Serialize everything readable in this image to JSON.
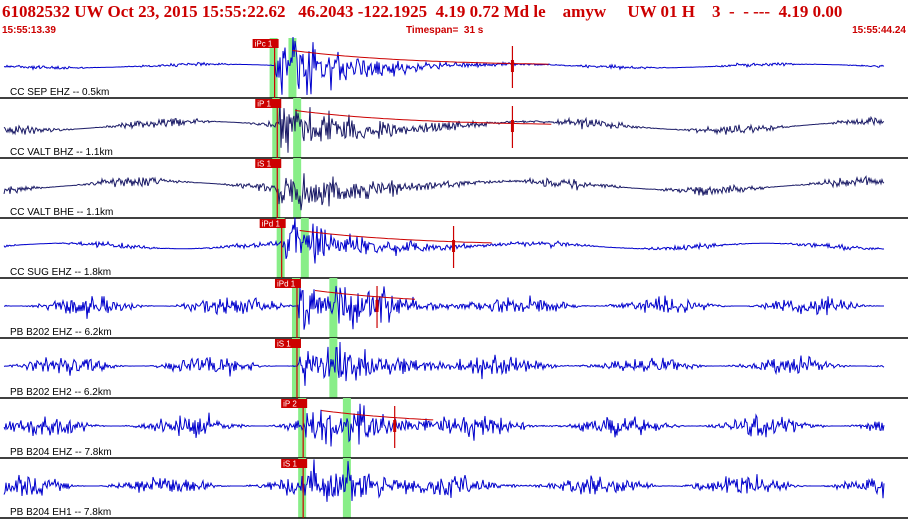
{
  "header": {
    "title": "61082532 UW Oct 23, 2015 15:55:22.62   46.2043 -122.1925  4.19 0.72 Md le    amyw     UW 01 H    3  -  - ---  4.19 0.00",
    "start_time": "15:55:13.39",
    "timespan": "Timespan=  31 s",
    "end_time": "15:55:44.24"
  },
  "colors": {
    "header_text": "#cc0000",
    "trace_short": "#1a1a66",
    "trace_long": "#0000cc",
    "pick": "#cc0000",
    "pick_window": "#88ee88"
  },
  "chart_data": {
    "type": "line",
    "xlim": [
      13.39,
      44.24
    ],
    "origin_time": 22.62,
    "traces": [
      {
        "label": "CC SEP EHZ -- 0.5km",
        "pick_labels": [
          "iPc 1"
        ],
        "p_time": 22.72,
        "s_time": 23.36,
        "amp_marker_time": 30.8,
        "noise": 2,
        "event_amp": 34,
        "color_key": "trace_long"
      },
      {
        "label": "CC VALT BHZ -- 1.1km",
        "pick_labels": [
          "iP 1"
        ],
        "p_time": 22.81,
        "s_time": 23.52,
        "amp_marker_time": 30.8,
        "noise": 5,
        "event_amp": 30,
        "color_key": "trace_short"
      },
      {
        "label": "CC VALT BHE -- 1.1km",
        "pick_labels": [
          "iS 1"
        ],
        "p_time": 22.81,
        "s_time": 23.52,
        "amp_marker_time": null,
        "noise": 5,
        "event_amp": 28,
        "color_key": "trace_short"
      },
      {
        "label": "CC SUG EHZ -- 1.8km",
        "pick_labels": [
          "iPd 1"
        ],
        "p_time": 22.96,
        "s_time": 23.78,
        "amp_marker_time": 28.8,
        "noise": 3,
        "event_amp": 28,
        "color_key": "trace_long"
      },
      {
        "label": "PB B202 EHZ -- 6.2km",
        "pick_labels": [
          "iPd 1"
        ],
        "p_time": 23.48,
        "s_time": 24.75,
        "amp_marker_time": 26.2,
        "noise": 10,
        "event_amp": 26,
        "color_key": "trace_long"
      },
      {
        "label": "PB B202 EH2 -- 6.2km",
        "pick_labels": [
          "iS 1"
        ],
        "p_time": 23.48,
        "s_time": 24.75,
        "amp_marker_time": null,
        "noise": 10,
        "event_amp": 24,
        "color_key": "trace_long"
      },
      {
        "label": "PB B204 EHZ -- 7.8km",
        "pick_labels": [
          "iP 2"
        ],
        "p_time": 23.69,
        "s_time": 25.21,
        "amp_marker_time": 26.8,
        "noise": 11,
        "event_amp": 26,
        "color_key": "trace_long"
      },
      {
        "label": "PB B204 EH1 -- 7.8km",
        "pick_labels": [
          "iS 1"
        ],
        "p_time": 23.69,
        "s_time": 25.21,
        "amp_marker_time": null,
        "noise": 11,
        "event_amp": 24,
        "color_key": "trace_long"
      }
    ]
  }
}
